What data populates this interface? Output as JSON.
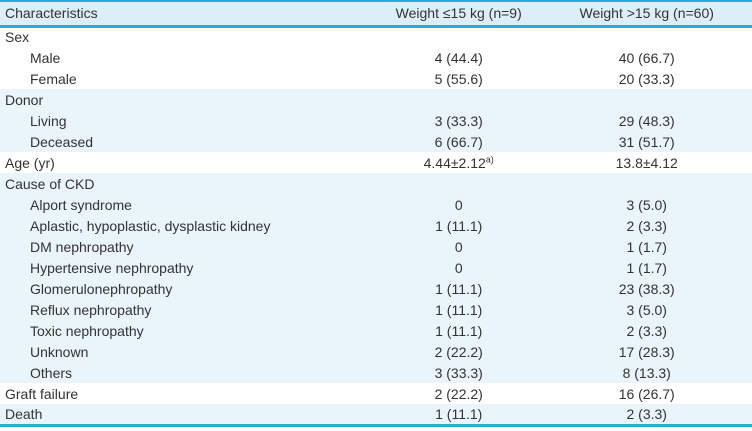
{
  "colors": {
    "accent_border": "#2ea9d9",
    "header_bg": "#ddeef8",
    "shaded_row_bg": "#e9f4fb",
    "text": "#333333"
  },
  "table": {
    "columns": [
      "Characteristics",
      "Weight ≤15 kg (n=9)",
      "Weight >15 kg (n=60)"
    ],
    "rows": [
      {
        "label": "Sex",
        "indent": 0,
        "shaded": false,
        "v1": "",
        "v2": ""
      },
      {
        "label": "Male",
        "indent": 1,
        "shaded": false,
        "v1": "4 (44.4)",
        "v2": "40 (66.7)"
      },
      {
        "label": "Female",
        "indent": 1,
        "shaded": false,
        "v1": "5 (55.6)",
        "v2": "20 (33.3)"
      },
      {
        "label": "Donor",
        "indent": 0,
        "shaded": true,
        "v1": "",
        "v2": ""
      },
      {
        "label": "Living",
        "indent": 1,
        "shaded": true,
        "v1": "3 (33.3)",
        "v2": "29 (48.3)"
      },
      {
        "label": "Deceased",
        "indent": 1,
        "shaded": true,
        "v1": "6 (66.7)",
        "v2": "31 (51.7)"
      },
      {
        "label": "Age (yr)",
        "indent": 0,
        "shaded": false,
        "v1": "4.44±2.12",
        "v1_sup": "a)",
        "v2": "13.8±4.12"
      },
      {
        "label": "Cause of CKD",
        "indent": 0,
        "shaded": true,
        "v1": "",
        "v2": ""
      },
      {
        "label": "Alport syndrome",
        "indent": 1,
        "shaded": true,
        "v1": "0",
        "v2": "3 (5.0)"
      },
      {
        "label": "Aplastic, hypoplastic, dysplastic kidney",
        "indent": 1,
        "shaded": true,
        "v1": "1 (11.1)",
        "v2": "2 (3.3)"
      },
      {
        "label": "DM nephropathy",
        "indent": 1,
        "shaded": true,
        "v1": "0",
        "v2": "1 (1.7)"
      },
      {
        "label": "Hypertensive nephropathy",
        "indent": 1,
        "shaded": true,
        "v1": "0",
        "v2": "1 (1.7)"
      },
      {
        "label": "Glomerulonephropathy",
        "indent": 1,
        "shaded": true,
        "v1": "1 (11.1)",
        "v2": "23 (38.3)"
      },
      {
        "label": "Reflux nephropathy",
        "indent": 1,
        "shaded": true,
        "v1": "1 (11.1)",
        "v2": "3 (5.0)"
      },
      {
        "label": "Toxic nephropathy",
        "indent": 1,
        "shaded": true,
        "v1": "1 (11.1)",
        "v2": "2 (3.3)"
      },
      {
        "label": "Unknown",
        "indent": 1,
        "shaded": true,
        "v1": "2 (22.2)",
        "v2": "17 (28.3)"
      },
      {
        "label": "Others",
        "indent": 1,
        "shaded": true,
        "v1": "3 (33.3)",
        "v2": "8 (13.3)"
      },
      {
        "label": "Graft failure",
        "indent": 0,
        "shaded": false,
        "v1": "2 (22.2)",
        "v2": "16 (26.7)"
      },
      {
        "label": "Death",
        "indent": 0,
        "shaded": true,
        "v1": "1 (11.1)",
        "v2": "2 (3.3)"
      }
    ]
  }
}
